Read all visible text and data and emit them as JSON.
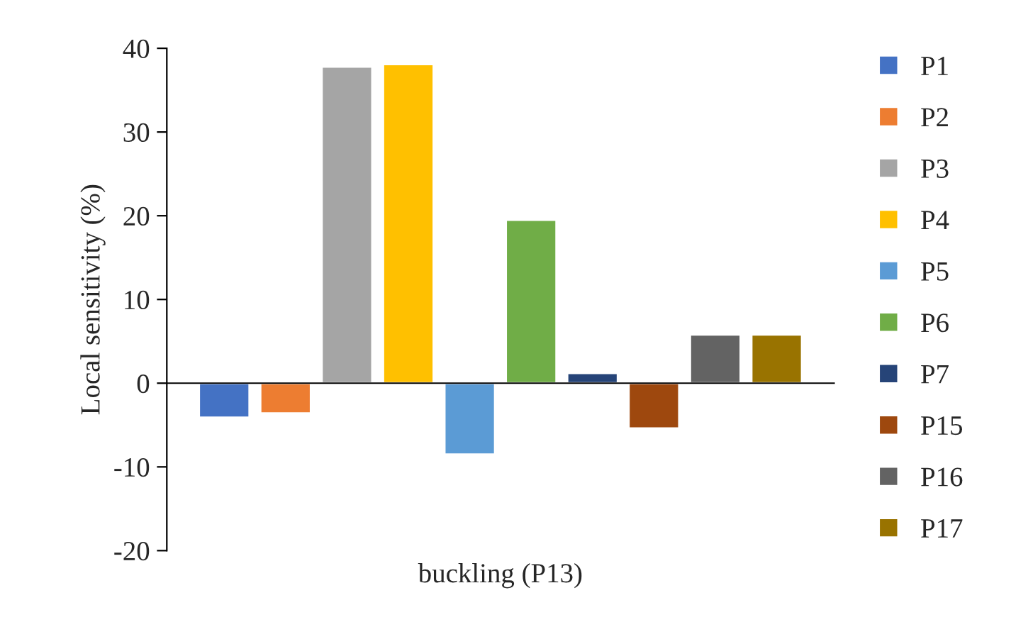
{
  "chart_data": {
    "type": "bar",
    "ylabel": "Local sensitivity (%)",
    "categories": [
      "buckling (P13)"
    ],
    "series": [
      {
        "name": "P1",
        "color": "#4472c4",
        "values": [
          -4.1
        ]
      },
      {
        "name": "P2",
        "color": "#ed7d31",
        "values": [
          -3.6
        ]
      },
      {
        "name": "P3",
        "color": "#a5a5a5",
        "values": [
          37.8
        ]
      },
      {
        "name": "P4",
        "color": "#ffc000",
        "values": [
          38.1
        ]
      },
      {
        "name": "P5",
        "color": "#5b9bd5",
        "values": [
          -8.5
        ]
      },
      {
        "name": "P6",
        "color": "#70ad47",
        "values": [
          19.5
        ]
      },
      {
        "name": "P7",
        "color": "#264478",
        "values": [
          1.2
        ]
      },
      {
        "name": "P15",
        "color": "#9e480e",
        "values": [
          -5.4
        ]
      },
      {
        "name": "P16",
        "color": "#636363",
        "values": [
          5.8
        ]
      },
      {
        "name": "P17",
        "color": "#997300",
        "values": [
          5.8
        ]
      }
    ],
    "ylim": [
      -20,
      40
    ],
    "yticks": [
      -20,
      -10,
      0,
      10,
      20,
      30,
      40
    ],
    "legend": "right"
  }
}
